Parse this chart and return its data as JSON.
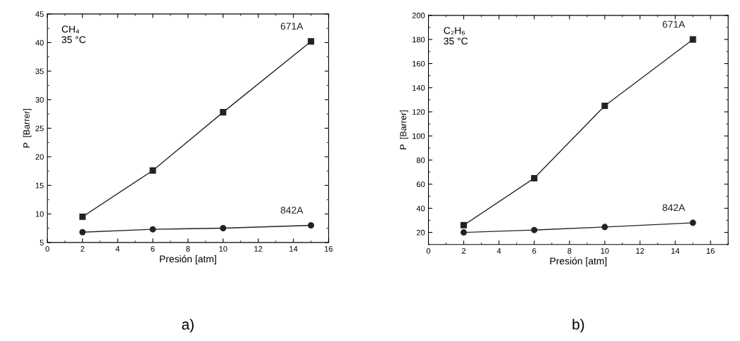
{
  "chart_data": [
    {
      "type": "line",
      "xlabel": "Presión [atm]",
      "ylabel": "P  [Barrer]",
      "annotations": [
        "CH₄\n35 °C",
        "a)"
      ],
      "x": [
        2,
        6,
        10,
        15
      ],
      "xlim": [
        0,
        16
      ],
      "xticks": [
        0,
        2,
        4,
        6,
        8,
        10,
        12,
        14,
        16
      ],
      "ylim": [
        5,
        45
      ],
      "yticks": [
        5,
        10,
        15,
        20,
        25,
        30,
        35,
        40,
        45
      ],
      "grid": false,
      "legend": false,
      "line_style": "solid",
      "series": [
        {
          "name": "671A",
          "color": "#222222",
          "marker": "square",
          "values": [
            9.5,
            17.6,
            27.8,
            40.2
          ]
        },
        {
          "name": "842A",
          "color": "#222222",
          "marker": "circle",
          "values": [
            6.8,
            7.3,
            7.5,
            8.0
          ]
        }
      ]
    },
    {
      "type": "line",
      "xlabel": "Presión [atm]",
      "ylabel": "P  [Barrer]",
      "annotations": [
        "C₂H₆\n35 °C",
        "b)"
      ],
      "x": [
        2,
        6,
        10,
        15
      ],
      "xlim": [
        0,
        17
      ],
      "xticks": [
        0,
        2,
        4,
        6,
        8,
        10,
        12,
        14,
        16
      ],
      "ylim": [
        10,
        200
      ],
      "yticks": [
        20,
        40,
        60,
        80,
        100,
        120,
        140,
        160,
        180,
        200
      ],
      "grid": false,
      "legend": false,
      "line_style": "solid",
      "series": [
        {
          "name": "671A",
          "color": "#222222",
          "marker": "square",
          "values": [
            26,
            65,
            125,
            180
          ]
        },
        {
          "name": "842A",
          "color": "#222222",
          "marker": "circle",
          "values": [
            20,
            22,
            24.5,
            28
          ]
        }
      ]
    }
  ]
}
